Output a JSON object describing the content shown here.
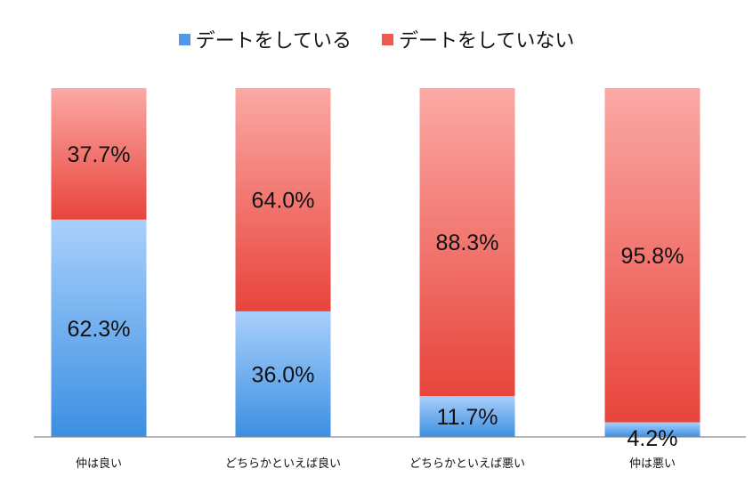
{
  "chart_data": {
    "type": "bar",
    "stacked": true,
    "categories": [
      "仲は良い",
      "どちらかといえば良い",
      "どちらかといえば悪い",
      "仲は悪い"
    ],
    "series": [
      {
        "name": "デートをしている",
        "values": [
          62.3,
          36.0,
          11.7,
          4.2
        ],
        "labels": [
          "62.3%",
          "36.0%",
          "11.7%",
          "4.2%"
        ],
        "color": "#6aaef0"
      },
      {
        "name": "デートをしていない",
        "values": [
          37.7,
          64.0,
          88.3,
          95.8
        ],
        "labels": [
          "37.7%",
          "64.0%",
          "88.3%",
          "95.8%"
        ],
        "color": "#f0645a"
      }
    ],
    "ylim": [
      0,
      100
    ],
    "legend_position": "top-center",
    "grid": false
  }
}
